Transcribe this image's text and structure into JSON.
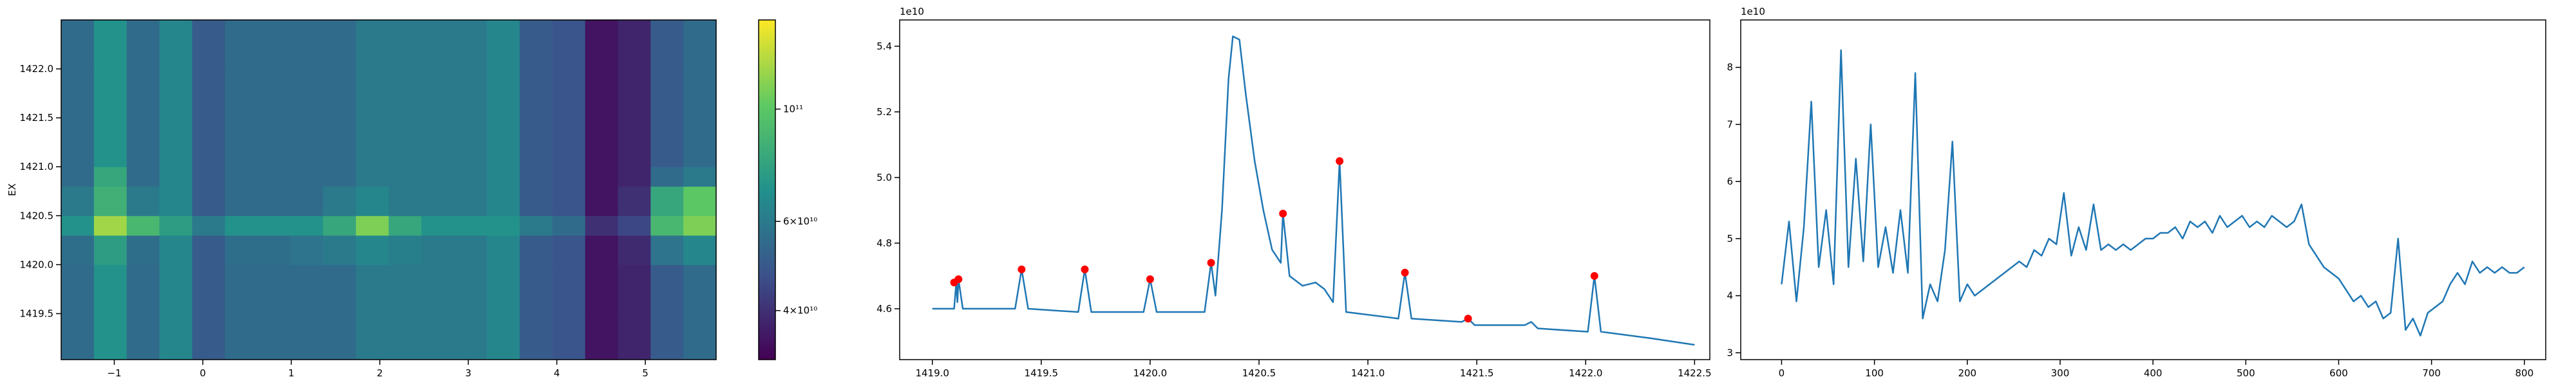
{
  "chart_data": [
    {
      "type": "heatmap",
      "ylabel": "EX",
      "colormap": "viridis",
      "log_color": true,
      "xlim": [
        -1.6,
        5.8
      ],
      "ylim": [
        1419.03,
        1422.5
      ],
      "xticks": [
        {
          "value": -1,
          "label": "−1"
        },
        0,
        1,
        2,
        3,
        4,
        5
      ],
      "yticks": [
        1419.5,
        {
          "value": 1420,
          "label": "1420.0"
        },
        1420.5,
        {
          "value": 1421,
          "label": "1421.0"
        },
        1421.5,
        {
          "value": 1422,
          "label": "1422.0"
        }
      ],
      "xbins": [
        -1.6,
        -1.23,
        -0.86,
        -0.49,
        -0.12,
        0.25,
        0.62,
        0.99,
        1.36,
        1.73,
        2.1,
        2.47,
        2.84,
        3.21,
        3.58,
        3.95,
        4.32,
        4.69,
        5.06,
        5.43,
        5.8
      ],
      "ybins": [
        1419.03,
        1419.5,
        1420.0,
        1420.3,
        1420.5,
        1420.8,
        1421.0,
        1421.5,
        1422.0,
        1422.5
      ],
      "z": [
        [
          55000000000.0,
          70000000000.0,
          55000000000.0,
          65000000000.0,
          50000000000.0,
          55000000000.0,
          55000000000.0,
          55000000000.0,
          55000000000.0,
          60000000000.0,
          60000000000.0,
          60000000000.0,
          60000000000.0,
          65000000000.0,
          50000000000.0,
          48000000000.0,
          35000000000.0,
          38000000000.0,
          50000000000.0,
          55000000000.0
        ],
        [
          55000000000.0,
          70000000000.0,
          55000000000.0,
          65000000000.0,
          50000000000.0,
          55000000000.0,
          55000000000.0,
          55000000000.0,
          55000000000.0,
          60000000000.0,
          60000000000.0,
          60000000000.0,
          60000000000.0,
          65000000000.0,
          50000000000.0,
          48000000000.0,
          35000000000.0,
          38000000000.0,
          50000000000.0,
          55000000000.0
        ],
        [
          56000000000.0,
          75000000000.0,
          56000000000.0,
          65000000000.0,
          50000000000.0,
          56000000000.0,
          56000000000.0,
          58000000000.0,
          60000000000.0,
          65000000000.0,
          62000000000.0,
          60000000000.0,
          60000000000.0,
          65000000000.0,
          50000000000.0,
          48000000000.0,
          35000000000.0,
          39000000000.0,
          58000000000.0,
          65000000000.0
        ],
        [
          70000000000.0,
          120000000000.0,
          90000000000.0,
          75000000000.0,
          60000000000.0,
          70000000000.0,
          70000000000.0,
          70000000000.0,
          80000000000.0,
          110000000000.0,
          80000000000.0,
          70000000000.0,
          70000000000.0,
          70000000000.0,
          60000000000.0,
          55000000000.0,
          40000000000.0,
          45000000000.0,
          90000000000.0,
          110000000000.0
        ],
        [
          60000000000.0,
          85000000000.0,
          60000000000.0,
          65000000000.0,
          50000000000.0,
          55000000000.0,
          55000000000.0,
          55000000000.0,
          60000000000.0,
          65000000000.0,
          60000000000.0,
          60000000000.0,
          60000000000.0,
          65000000000.0,
          50000000000.0,
          48000000000.0,
          35000000000.0,
          40000000000.0,
          80000000000.0,
          100000000000.0
        ],
        [
          55000000000.0,
          80000000000.0,
          55000000000.0,
          65000000000.0,
          50000000000.0,
          55000000000.0,
          55000000000.0,
          55000000000.0,
          55000000000.0,
          60000000000.0,
          60000000000.0,
          60000000000.0,
          60000000000.0,
          65000000000.0,
          50000000000.0,
          48000000000.0,
          35000000000.0,
          38000000000.0,
          55000000000.0,
          60000000000.0
        ],
        [
          55000000000.0,
          70000000000.0,
          55000000000.0,
          65000000000.0,
          50000000000.0,
          55000000000.0,
          55000000000.0,
          55000000000.0,
          55000000000.0,
          60000000000.0,
          60000000000.0,
          60000000000.0,
          60000000000.0,
          65000000000.0,
          50000000000.0,
          48000000000.0,
          35000000000.0,
          38000000000.0,
          50000000000.0,
          55000000000.0
        ],
        [
          55000000000.0,
          70000000000.0,
          55000000000.0,
          65000000000.0,
          50000000000.0,
          55000000000.0,
          55000000000.0,
          55000000000.0,
          55000000000.0,
          60000000000.0,
          60000000000.0,
          60000000000.0,
          60000000000.0,
          65000000000.0,
          50000000000.0,
          48000000000.0,
          35000000000.0,
          38000000000.0,
          50000000000.0,
          55000000000.0
        ],
        [
          55000000000.0,
          70000000000.0,
          55000000000.0,
          65000000000.0,
          50000000000.0,
          55000000000.0,
          55000000000.0,
          55000000000.0,
          55000000000.0,
          60000000000.0,
          60000000000.0,
          60000000000.0,
          60000000000.0,
          65000000000.0,
          50000000000.0,
          48000000000.0,
          35000000000.0,
          38000000000.0,
          50000000000.0,
          55000000000.0
        ]
      ],
      "clim": [
        32000000000.0,
        150000000000.0
      ],
      "cticks": [
        {
          "value": 40000000000.0,
          "label": "4×10¹⁰"
        },
        {
          "value": 60000000000.0,
          "label": "6×10¹⁰"
        },
        {
          "value": 100000000000.0,
          "label": "10¹¹"
        }
      ]
    },
    {
      "type": "line",
      "offset_text": "1e10",
      "color": "#1f77b4",
      "xlim": [
        1418.85,
        1422.57
      ],
      "ylim": [
        4.445,
        5.48
      ],
      "xticks": [
        {
          "value": 1419,
          "label": "1419.0"
        },
        1419.5,
        {
          "value": 1420,
          "label": "1420.0"
        },
        1420.5,
        {
          "value": 1421,
          "label": "1421.0"
        },
        1421.5,
        {
          "value": 1422,
          "label": "1422.0"
        },
        1422.5
      ],
      "yticks": [
        4.6,
        4.8,
        {
          "value": 5,
          "label": "5.0"
        },
        5.2,
        5.4
      ],
      "x": [
        1419.0,
        1419.08,
        1419.1,
        1419.11,
        1419.115,
        1419.12,
        1419.14,
        1419.38,
        1419.41,
        1419.44,
        1419.67,
        1419.7,
        1419.73,
        1419.97,
        1420.0,
        1420.03,
        1420.25,
        1420.28,
        1420.3,
        1420.33,
        1420.36,
        1420.38,
        1420.41,
        1420.44,
        1420.48,
        1420.52,
        1420.56,
        1420.6,
        1420.61,
        1420.64,
        1420.7,
        1420.76,
        1420.8,
        1420.84,
        1420.87,
        1420.9,
        1421.14,
        1421.17,
        1421.2,
        1421.43,
        1421.46,
        1421.49,
        1421.72,
        1421.75,
        1421.78,
        1422.01,
        1422.04,
        1422.07,
        1422.3,
        1422.5
      ],
      "values": [
        4.6,
        4.6,
        4.6,
        4.68,
        4.62,
        4.69,
        4.6,
        4.6,
        4.72,
        4.6,
        4.59,
        4.72,
        4.59,
        4.59,
        4.69,
        4.59,
        4.59,
        4.74,
        4.64,
        4.9,
        5.3,
        5.43,
        5.42,
        5.25,
        5.05,
        4.9,
        4.78,
        4.74,
        4.89,
        4.7,
        4.67,
        4.68,
        4.66,
        4.62,
        5.05,
        4.59,
        4.57,
        4.71,
        4.57,
        4.56,
        4.57,
        4.55,
        4.55,
        4.56,
        4.54,
        4.53,
        4.7,
        4.53,
        4.51,
        4.49
      ],
      "markers": {
        "color": "#ff0000",
        "x": [
          1419.1,
          1419.12,
          1419.41,
          1419.7,
          1420.0,
          1420.28,
          1420.61,
          1420.87,
          1421.17,
          1421.46,
          1422.04
        ],
        "values": [
          4.68,
          4.69,
          4.72,
          4.72,
          4.69,
          4.74,
          4.89,
          5.05,
          4.71,
          4.57,
          4.7
        ]
      }
    },
    {
      "type": "line",
      "offset_text": "1e10",
      "color": "#1f77b4",
      "xlim": [
        -44,
        823
      ],
      "ylim": [
        2.88,
        8.83
      ],
      "xticks": [
        0,
        100,
        200,
        300,
        400,
        500,
        600,
        700,
        800
      ],
      "yticks": [
        3,
        4,
        5,
        6,
        7,
        8
      ],
      "x": [
        0,
        8,
        16,
        24,
        32,
        40,
        48,
        56,
        64,
        72,
        80,
        88,
        96,
        104,
        112,
        120,
        128,
        136,
        144,
        152,
        160,
        168,
        176,
        184,
        192,
        200,
        208,
        216,
        224,
        232,
        240,
        248,
        256,
        264,
        272,
        280,
        288,
        296,
        304,
        312,
        320,
        328,
        336,
        344,
        352,
        360,
        368,
        376,
        384,
        392,
        400,
        408,
        416,
        424,
        432,
        440,
        448,
        456,
        464,
        472,
        480,
        488,
        496,
        504,
        512,
        520,
        528,
        536,
        544,
        552,
        560,
        568,
        576,
        584,
        592,
        600,
        608,
        616,
        624,
        632,
        640,
        648,
        656,
        664,
        672,
        680,
        688,
        696,
        704,
        712,
        720,
        728,
        736,
        744,
        752,
        760,
        768,
        776,
        784,
        792,
        800
      ],
      "values": [
        4.2,
        5.3,
        3.9,
        5.2,
        7.4,
        4.5,
        5.5,
        4.2,
        8.3,
        4.5,
        6.4,
        4.6,
        7.0,
        4.5,
        5.2,
        4.4,
        5.5,
        4.4,
        7.9,
        3.6,
        4.2,
        3.9,
        4.8,
        6.7,
        3.9,
        4.2,
        4.0,
        4.1,
        4.2,
        4.3,
        4.4,
        4.5,
        4.6,
        4.5,
        4.8,
        4.7,
        5.0,
        4.9,
        5.8,
        4.7,
        5.2,
        4.8,
        5.6,
        4.8,
        4.9,
        4.8,
        4.9,
        4.8,
        4.9,
        5.0,
        5.0,
        5.1,
        5.1,
        5.2,
        5.0,
        5.3,
        5.2,
        5.3,
        5.1,
        5.4,
        5.2,
        5.3,
        5.4,
        5.2,
        5.3,
        5.2,
        5.4,
        5.3,
        5.2,
        5.3,
        5.6,
        4.9,
        4.7,
        4.5,
        4.4,
        4.3,
        4.1,
        3.9,
        4.0,
        3.8,
        3.9,
        3.6,
        3.7,
        5.0,
        3.4,
        3.6,
        3.3,
        3.7,
        3.8,
        3.9,
        4.2,
        4.4,
        4.2,
        4.6,
        4.4,
        4.5,
        4.4,
        4.5,
        4.4,
        4.4,
        4.5
      ]
    }
  ]
}
